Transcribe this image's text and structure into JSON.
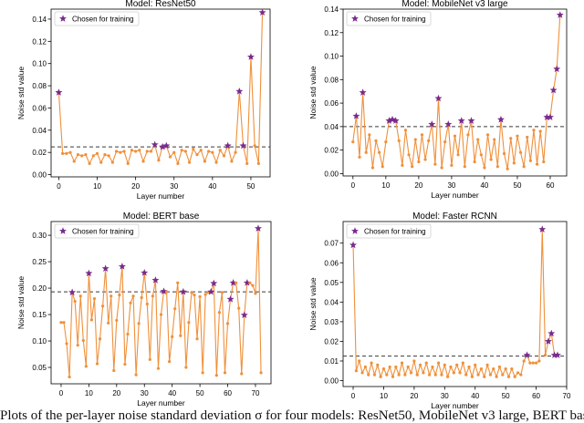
{
  "colors": {
    "line": "#f0903a",
    "marker": "#f0903a",
    "star": "#7a2a8c",
    "axis": "#000000",
    "dashed": "#3a3a3a"
  },
  "legend_label": "Chosen for training",
  "caption": "Plots of the per-layer noise standard deviation σ for four models: ResNet50, MobileNet v3 large, BERT base and Faster RCNN",
  "chart_data": [
    {
      "type": "line",
      "title": "Model: ResNet50",
      "xlabel": "Layer number",
      "ylabel": "Noise std value",
      "xlim": [
        -2,
        55
      ],
      "ylim": [
        -0.002,
        0.149
      ],
      "xticks": [
        0,
        10,
        20,
        30,
        40,
        50
      ],
      "yticks": [
        0.0,
        0.02,
        0.04,
        0.06,
        0.08,
        0.1,
        0.12,
        0.14
      ],
      "ytick_labels": [
        "0.00",
        "0.02",
        "0.04",
        "0.06",
        "0.08",
        "0.10",
        "0.12",
        "0.14"
      ],
      "threshold": 0.025,
      "x": [
        0,
        1,
        2,
        3,
        4,
        5,
        6,
        7,
        8,
        9,
        10,
        11,
        12,
        13,
        14,
        15,
        16,
        17,
        18,
        19,
        20,
        21,
        22,
        23,
        24,
        25,
        26,
        27,
        28,
        29,
        30,
        31,
        32,
        33,
        34,
        35,
        36,
        37,
        38,
        39,
        40,
        41,
        42,
        43,
        44,
        45,
        46,
        47,
        48,
        49,
        50,
        51,
        52,
        53
      ],
      "values": [
        0.074,
        0.019,
        0.019,
        0.02,
        0.012,
        0.018,
        0.017,
        0.018,
        0.01,
        0.017,
        0.019,
        0.011,
        0.018,
        0.017,
        0.011,
        0.021,
        0.02,
        0.021,
        0.01,
        0.022,
        0.021,
        0.022,
        0.012,
        0.021,
        0.021,
        0.027,
        0.013,
        0.025,
        0.026,
        0.016,
        0.02,
        0.01,
        0.022,
        0.021,
        0.011,
        0.023,
        0.018,
        0.022,
        0.012,
        0.021,
        0.02,
        0.011,
        0.022,
        0.017,
        0.026,
        0.012,
        0.02,
        0.075,
        0.026,
        0.01,
        0.106,
        0.026,
        0.01,
        0.146
      ],
      "chosen": [
        0,
        25,
        27,
        28,
        44,
        47,
        48,
        50,
        53
      ]
    },
    {
      "type": "line",
      "title": "Model: MobileNet v3 large",
      "xlabel": "Layer number",
      "ylabel": "Noise std value",
      "xlim": [
        -3,
        65
      ],
      "ylim": [
        -0.002,
        0.14
      ],
      "xticks": [
        0,
        10,
        20,
        30,
        40,
        50,
        60
      ],
      "yticks": [
        0.0,
        0.02,
        0.04,
        0.06,
        0.08,
        0.1,
        0.12,
        0.14
      ],
      "ytick_labels": [
        "0.00",
        "0.02",
        "0.04",
        "0.06",
        "0.08",
        "0.10",
        "0.12",
        "0.14"
      ],
      "threshold": 0.04,
      "x": [
        0,
        1,
        2,
        3,
        4,
        5,
        6,
        7,
        8,
        9,
        10,
        11,
        12,
        13,
        14,
        15,
        16,
        17,
        18,
        19,
        20,
        21,
        22,
        23,
        24,
        25,
        26,
        27,
        28,
        29,
        30,
        31,
        32,
        33,
        34,
        35,
        36,
        37,
        38,
        39,
        40,
        41,
        42,
        43,
        44,
        45,
        46,
        47,
        48,
        49,
        50,
        51,
        52,
        53,
        54,
        55,
        56,
        57,
        58,
        59,
        60,
        61,
        62,
        63
      ],
      "values": [
        0.027,
        0.049,
        0.014,
        0.069,
        0.018,
        0.033,
        0.005,
        0.028,
        0.018,
        0.006,
        0.027,
        0.045,
        0.046,
        0.045,
        0.028,
        0.007,
        0.037,
        0.016,
        0.006,
        0.029,
        0.01,
        0.033,
        0.012,
        0.028,
        0.042,
        0.008,
        0.064,
        0.005,
        0.027,
        0.042,
        0.007,
        0.032,
        0.016,
        0.045,
        0.006,
        0.033,
        0.045,
        0.01,
        0.029,
        0.016,
        0.005,
        0.033,
        0.012,
        0.029,
        0.006,
        0.046,
        0.017,
        0.004,
        0.03,
        0.009,
        0.032,
        0.018,
        0.006,
        0.031,
        0.011,
        0.037,
        0.008,
        0.036,
        0.01,
        0.048,
        0.048,
        0.071,
        0.089,
        0.135
      ],
      "chosen": [
        1,
        3,
        11,
        12,
        13,
        24,
        26,
        29,
        33,
        36,
        45,
        59,
        60,
        61,
        62,
        63
      ]
    },
    {
      "type": "line",
      "title": "Model: BERT base",
      "xlabel": "Layer number",
      "ylabel": "Noise std value",
      "xlim": [
        -3.6,
        75.6
      ],
      "ylim": [
        0.019,
        0.326
      ],
      "xticks": [
        0,
        10,
        20,
        30,
        40,
        50,
        60,
        70
      ],
      "yticks": [
        0.05,
        0.1,
        0.15,
        0.2,
        0.25,
        0.3
      ],
      "ytick_labels": [
        "0.05",
        "0.10",
        "0.15",
        "0.20",
        "0.25",
        "0.30"
      ],
      "threshold": 0.193,
      "x": [
        0,
        1,
        2,
        3,
        4,
        5,
        6,
        7,
        8,
        9,
        10,
        11,
        12,
        13,
        14,
        15,
        16,
        17,
        18,
        19,
        20,
        21,
        22,
        23,
        24,
        25,
        26,
        27,
        28,
        29,
        30,
        31,
        32,
        33,
        34,
        35,
        36,
        37,
        38,
        39,
        40,
        41,
        42,
        43,
        44,
        45,
        46,
        47,
        48,
        49,
        50,
        51,
        52,
        53,
        54,
        55,
        56,
        57,
        58,
        59,
        60,
        61,
        62,
        63,
        64,
        65,
        66,
        67,
        68,
        69,
        70,
        71,
        72
      ],
      "values": [
        0.135,
        0.135,
        0.095,
        0.032,
        0.192,
        0.175,
        0.092,
        0.185,
        0.101,
        0.052,
        0.228,
        0.14,
        0.18,
        0.057,
        0.104,
        0.166,
        0.237,
        0.134,
        0.185,
        0.044,
        0.139,
        0.187,
        0.241,
        0.056,
        0.113,
        0.172,
        0.185,
        0.036,
        0.133,
        0.182,
        0.229,
        0.17,
        0.065,
        0.185,
        0.215,
        0.048,
        0.15,
        0.194,
        0.193,
        0.061,
        0.108,
        0.161,
        0.21,
        0.11,
        0.193,
        0.05,
        0.135,
        0.192,
        0.187,
        0.104,
        0.184,
        0.04,
        0.188,
        0.192,
        0.193,
        0.209,
        0.035,
        0.154,
        0.192,
        0.04,
        0.133,
        0.179,
        0.21,
        0.21,
        0.162,
        0.038,
        0.149,
        0.21,
        0.21,
        0.205,
        0.19,
        0.313,
        0.04
      ],
      "chosen": [
        4,
        10,
        16,
        22,
        30,
        34,
        37,
        44,
        54,
        55,
        61,
        62,
        66,
        67,
        71
      ]
    },
    {
      "type": "line",
      "title": "Model: Faster RCNN",
      "xlabel": "Layer number",
      "ylabel": "Noise std value",
      "xlim": [
        -3.3,
        70
      ],
      "ylim": [
        -0.003,
        0.081
      ],
      "xticks": [
        0,
        10,
        20,
        30,
        40,
        50,
        60,
        70
      ],
      "yticks": [
        0.0,
        0.01,
        0.02,
        0.03,
        0.04,
        0.05,
        0.06,
        0.07
      ],
      "ytick_labels": [
        "0.00",
        "0.01",
        "0.02",
        "0.03",
        "0.04",
        "0.05",
        "0.06",
        "0.07"
      ],
      "threshold": 0.0125,
      "x": [
        0,
        1,
        2,
        3,
        4,
        5,
        6,
        7,
        8,
        9,
        10,
        11,
        12,
        13,
        14,
        15,
        16,
        17,
        18,
        19,
        20,
        21,
        22,
        23,
        24,
        25,
        26,
        27,
        28,
        29,
        30,
        31,
        32,
        33,
        34,
        35,
        36,
        37,
        38,
        39,
        40,
        41,
        42,
        43,
        44,
        45,
        46,
        47,
        48,
        49,
        50,
        51,
        52,
        53,
        54,
        55,
        56,
        57,
        58,
        59,
        60,
        61,
        62,
        63,
        64,
        65,
        66,
        67
      ],
      "values": [
        0.069,
        0.005,
        0.01,
        0.004,
        0.007,
        0.003,
        0.009,
        0.003,
        0.008,
        0.002,
        0.006,
        0.003,
        0.007,
        0.002,
        0.007,
        0.003,
        0.009,
        0.003,
        0.007,
        0.004,
        0.01,
        0.003,
        0.008,
        0.004,
        0.009,
        0.003,
        0.007,
        0.003,
        0.009,
        0.003,
        0.008,
        0.002,
        0.007,
        0.004,
        0.008,
        0.004,
        0.009,
        0.003,
        0.007,
        0.002,
        0.008,
        0.003,
        0.006,
        0.002,
        0.008,
        0.003,
        0.006,
        0.002,
        0.007,
        0.003,
        0.006,
        0.002,
        0.006,
        0.002,
        0.004,
        0.003,
        0.01,
        0.013,
        0.009,
        0.009,
        0.009,
        0.01,
        0.077,
        0.013,
        0.02,
        0.024,
        0.013,
        0.013
      ],
      "chosen": [
        0,
        57,
        62,
        64,
        65,
        66,
        67
      ]
    }
  ]
}
